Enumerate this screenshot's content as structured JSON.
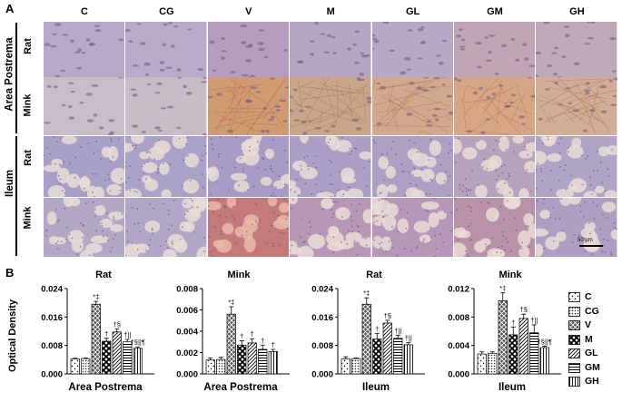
{
  "panel_a": {
    "label": "A",
    "columns": [
      "C",
      "CG",
      "V",
      "M",
      "GL",
      "GM",
      "GH"
    ],
    "groups": [
      {
        "name": "Area Postrema",
        "rows": [
          "Rat",
          "Mink"
        ]
      },
      {
        "name": "Ileum",
        "rows": [
          "Rat",
          "Mink"
        ]
      }
    ],
    "scale_bar": "50 μm",
    "tile_colors": {
      "ap_rat": [
        "#b7a9c9",
        "#b9abca",
        "#b59dbd",
        "#b6a6c4",
        "#b7a8c6",
        "#c0a5b5",
        "#bfaab9"
      ],
      "ap_mink": [
        "#c8bec9",
        "#c7bdc6",
        "#d19a72",
        "#c9a58a",
        "#d2a98e",
        "#d6a686",
        "#d2ad98"
      ],
      "il_rat": [
        "#a9a0c8",
        "#aba2c8",
        "#a89bc6",
        "#ab9fc6",
        "#ae9fc4",
        "#b5a2bd",
        "#ada4c6"
      ],
      "il_mink": [
        "#b3a7c6",
        "#b2a6c7",
        "#c47a7a",
        "#b897b6",
        "#b797b8",
        "#b892a6",
        "#ae9ec4"
      ]
    }
  },
  "panel_b": {
    "label": "B",
    "y_axis_label": "Optical Density",
    "legend": [
      {
        "key": "C",
        "pattern": "dots-sparse"
      },
      {
        "key": "CG",
        "pattern": "dots-dense"
      },
      {
        "key": "V",
        "pattern": "crosshatch-dark"
      },
      {
        "key": "M",
        "pattern": "checker"
      },
      {
        "key": "GL",
        "pattern": "diagonal"
      },
      {
        "key": "GM",
        "pattern": "horizontal"
      },
      {
        "key": "GH",
        "pattern": "vertical"
      }
    ]
  },
  "chart_data": [
    {
      "type": "bar",
      "title": "Rat",
      "xlabel": "Area Postrema",
      "ylabel": "Optical Density",
      "ylim": [
        0,
        0.024
      ],
      "yticks": [
        "0.000",
        "0.008",
        "0.016",
        "0.024"
      ],
      "categories": [
        "C",
        "CG",
        "V",
        "M",
        "GL",
        "GM",
        "GH"
      ],
      "values": [
        0.0042,
        0.0043,
        0.0196,
        0.0092,
        0.0118,
        0.009,
        0.0072
      ],
      "errors": [
        0.0002,
        0.0002,
        0.0008,
        0.0008,
        0.0009,
        0.0007,
        0.0004
      ],
      "annotations": [
        "",
        "",
        "*‡",
        "†",
        "†§",
        "†||",
        "†§||¶"
      ]
    },
    {
      "type": "bar",
      "title": "Mink",
      "xlabel": "Area Postrema",
      "ylim": [
        0,
        0.008
      ],
      "yticks": [
        "0.000",
        "0.002",
        "0.004",
        "0.006",
        "0.008"
      ],
      "categories": [
        "C",
        "CG",
        "V",
        "M",
        "GL",
        "GM",
        "GH"
      ],
      "values": [
        0.0013,
        0.00135,
        0.0056,
        0.0027,
        0.0029,
        0.0023,
        0.0021
      ],
      "errors": [
        0.0002,
        0.0002,
        0.0007,
        0.0004,
        0.0004,
        0.0004,
        0.0002
      ],
      "annotations": [
        "",
        "",
        "*‡",
        "†",
        "†",
        "†",
        "†"
      ]
    },
    {
      "type": "bar",
      "title": "Rat",
      "xlabel": "Ileum",
      "ylim": [
        0,
        0.024
      ],
      "yticks": [
        "0.000",
        "0.008",
        "0.016",
        "0.024"
      ],
      "categories": [
        "C",
        "CG",
        "V",
        "M",
        "GL",
        "GM",
        "GH"
      ],
      "values": [
        0.0042,
        0.0043,
        0.0196,
        0.0098,
        0.0143,
        0.01,
        0.0082
      ],
      "errors": [
        0.0006,
        0.0002,
        0.0018,
        0.0016,
        0.0008,
        0.0008,
        0.0006
      ],
      "annotations": [
        "",
        "",
        "*‡",
        "†",
        "†§",
        "†||",
        "†||"
      ]
    },
    {
      "type": "bar",
      "title": "Mink",
      "xlabel": "Ileum",
      "ylim": [
        0,
        0.012
      ],
      "yticks": [
        "0.000",
        "0.004",
        "0.008",
        "0.012"
      ],
      "categories": [
        "C",
        "CG",
        "V",
        "M",
        "GL",
        "GM",
        "GH"
      ],
      "values": [
        0.0028,
        0.0029,
        0.0103,
        0.0055,
        0.0078,
        0.0058,
        0.0037
      ],
      "errors": [
        0.0003,
        0.0002,
        0.0011,
        0.0011,
        0.0006,
        0.0011,
        0.0002
      ],
      "annotations": [
        "",
        "",
        "*‡",
        "†",
        "†§",
        "†||",
        "†§||¶"
      ]
    }
  ]
}
